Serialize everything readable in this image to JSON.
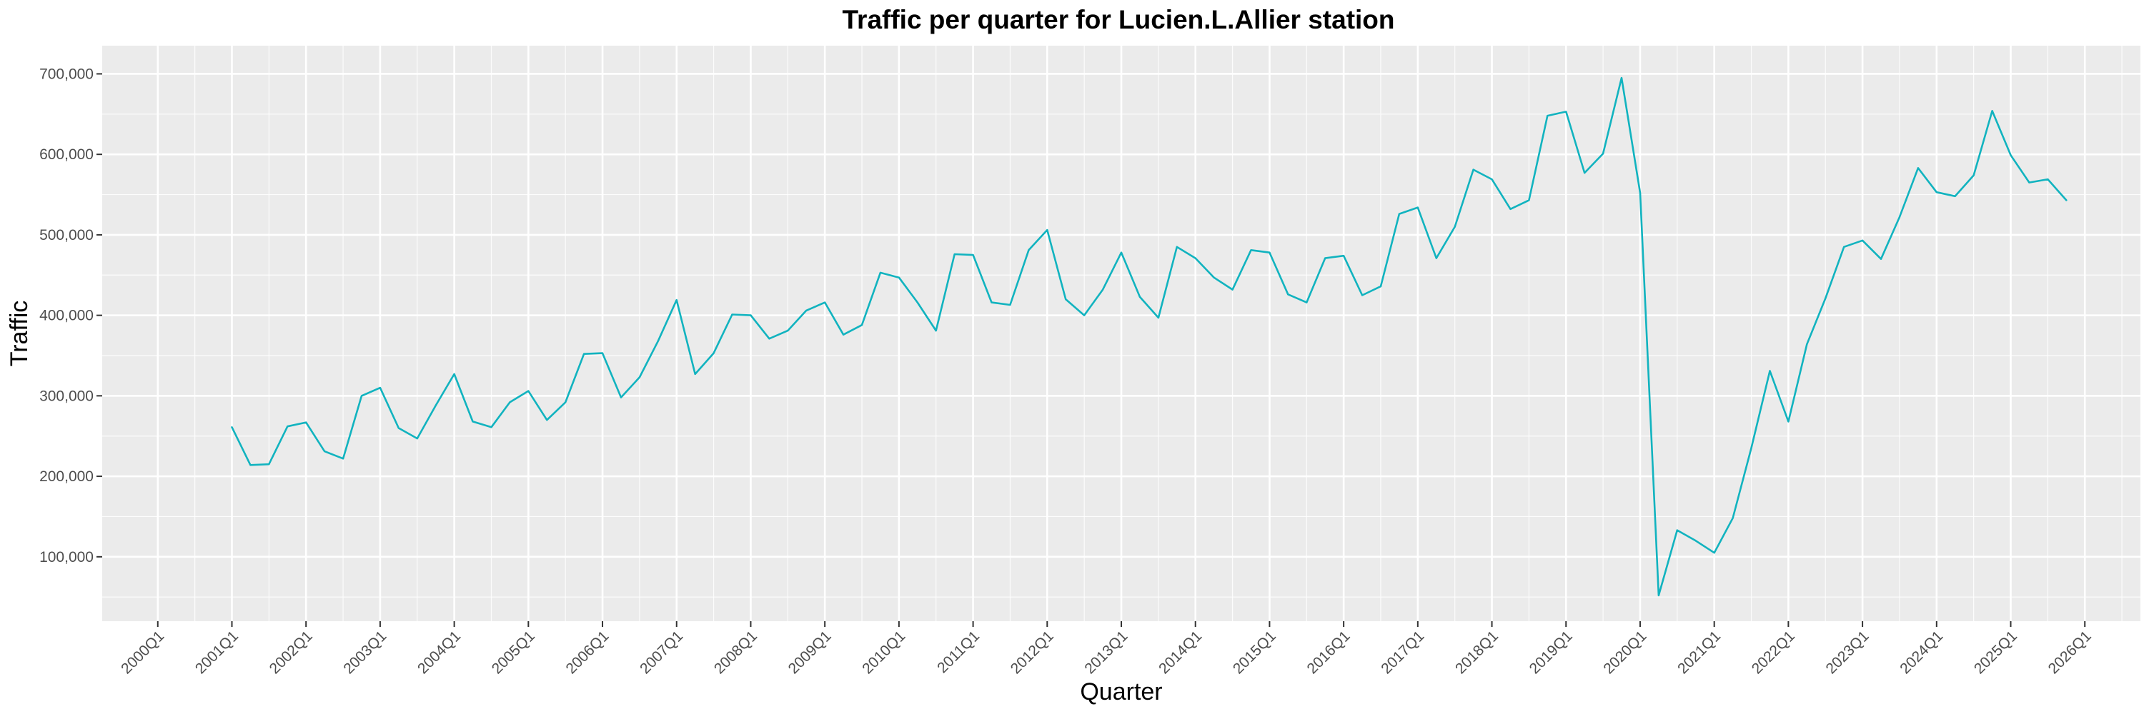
{
  "chart_data": {
    "type": "line",
    "title": "Traffic per quarter for Lucien.L.Allier station",
    "xlabel": "Quarter",
    "ylabel": "Traffic",
    "x_tick_labels": [
      "2000Q1",
      "2001Q1",
      "2002Q1",
      "2003Q1",
      "2004Q1",
      "2005Q1",
      "2006Q1",
      "2007Q1",
      "2008Q1",
      "2009Q1",
      "2010Q1",
      "2011Q1",
      "2012Q1",
      "2013Q1",
      "2014Q1",
      "2015Q1",
      "2016Q1",
      "2017Q1",
      "2018Q1",
      "2019Q1",
      "2020Q1",
      "2021Q1",
      "2022Q1",
      "2023Q1",
      "2024Q1",
      "2025Q1",
      "2026Q1"
    ],
    "y_tick_values": [
      100000,
      200000,
      300000,
      400000,
      500000,
      600000,
      700000
    ],
    "y_tick_labels": [
      "100,000",
      "200,000",
      "300,000",
      "400,000",
      "500,000",
      "600,000",
      "700,000"
    ],
    "xlim": [
      "1999Q2",
      "2026Q4"
    ],
    "ylim": [
      20000,
      735000
    ],
    "grid": true,
    "color": "#11b3bf",
    "background": "#ebebeb",
    "x": [
      "2001Q1",
      "2001Q2",
      "2001Q3",
      "2001Q4",
      "2002Q1",
      "2002Q2",
      "2002Q3",
      "2002Q4",
      "2003Q1",
      "2003Q2",
      "2003Q3",
      "2003Q4",
      "2004Q1",
      "2004Q2",
      "2004Q3",
      "2004Q4",
      "2005Q1",
      "2005Q2",
      "2005Q3",
      "2005Q4",
      "2006Q1",
      "2006Q2",
      "2006Q3",
      "2006Q4",
      "2007Q1",
      "2007Q2",
      "2007Q3",
      "2007Q4",
      "2008Q1",
      "2008Q2",
      "2008Q3",
      "2008Q4",
      "2009Q1",
      "2009Q2",
      "2009Q3",
      "2009Q4",
      "2010Q1",
      "2010Q2",
      "2010Q3",
      "2010Q4",
      "2011Q1",
      "2011Q2",
      "2011Q3",
      "2011Q4",
      "2012Q1",
      "2012Q2",
      "2012Q3",
      "2012Q4",
      "2013Q1",
      "2013Q2",
      "2013Q3",
      "2013Q4",
      "2014Q1",
      "2014Q2",
      "2014Q3",
      "2014Q4",
      "2015Q1",
      "2015Q2",
      "2015Q3",
      "2015Q4",
      "2016Q1",
      "2016Q2",
      "2016Q3",
      "2016Q4",
      "2017Q1",
      "2017Q2",
      "2017Q3",
      "2017Q4",
      "2018Q1",
      "2018Q2",
      "2018Q3",
      "2018Q4",
      "2019Q1",
      "2019Q2",
      "2019Q3",
      "2019Q4",
      "2020Q1",
      "2020Q2",
      "2020Q3",
      "2020Q4",
      "2021Q1",
      "2021Q2",
      "2021Q3",
      "2021Q4",
      "2022Q1",
      "2022Q2",
      "2022Q3",
      "2022Q4",
      "2023Q1",
      "2023Q2",
      "2023Q3",
      "2023Q4",
      "2024Q1",
      "2024Q2",
      "2024Q3",
      "2024Q4",
      "2025Q1",
      "2025Q2",
      "2025Q3",
      "2025Q4"
    ],
    "values": [
      261000,
      214000,
      215000,
      262000,
      267000,
      231000,
      222000,
      300000,
      310000,
      260000,
      247000,
      288000,
      327000,
      268000,
      261000,
      292000,
      306000,
      270000,
      292000,
      352000,
      353000,
      298000,
      323000,
      368000,
      419000,
      327000,
      353000,
      401000,
      400000,
      371000,
      381000,
      406000,
      416000,
      376000,
      388000,
      453000,
      447000,
      416000,
      381000,
      476000,
      475000,
      416000,
      413000,
      481000,
      506000,
      420000,
      400000,
      432000,
      478000,
      423000,
      397000,
      485000,
      471000,
      447000,
      432000,
      481000,
      478000,
      426000,
      416000,
      471000,
      474000,
      425000,
      436000,
      526000,
      534000,
      471000,
      510000,
      581000,
      569000,
      532000,
      543000,
      648000,
      653000,
      577000,
      601000,
      695000,
      552000,
      52000,
      133000,
      120000,
      105000,
      148000,
      235000,
      331000,
      268000,
      364000,
      421000,
      485000,
      493000,
      470000,
      522000,
      583000,
      553000,
      548000,
      574000,
      654000,
      599000,
      565000,
      569000,
      543000
    ]
  }
}
